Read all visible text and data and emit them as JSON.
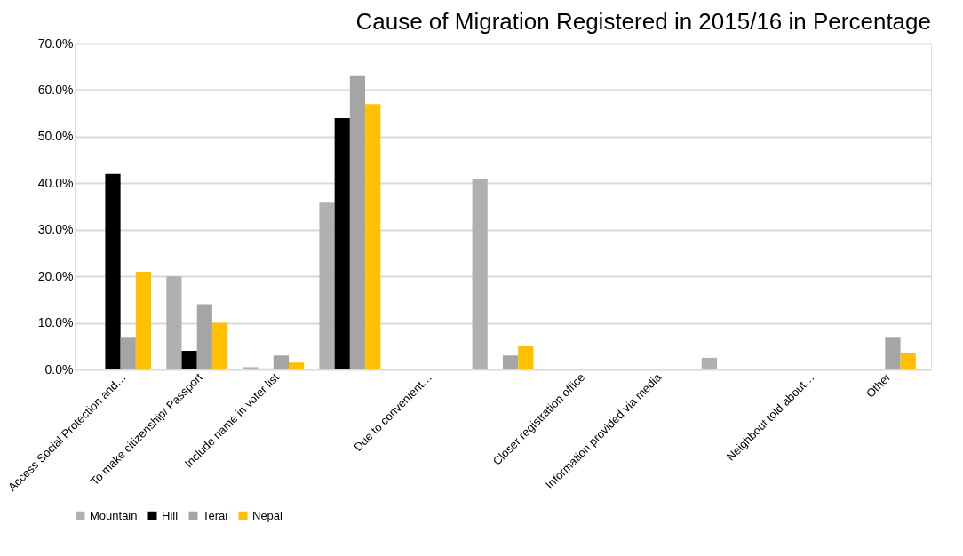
{
  "chart_data": {
    "type": "bar",
    "title": "Cause of Migration Registered in 2015/16 in Percentage",
    "categories": [
      "Access Social Protection and…",
      "To make citizenship/ Passport",
      "Include name in voter list",
      null,
      "Due to convenient…",
      null,
      "Closer registration office",
      "Information provided via media",
      null,
      "Neighbout told about…",
      "Other"
    ],
    "series": [
      {
        "name": "Mountain",
        "color": "#b0b0b0",
        "values": [
          0,
          20,
          0.5,
          36,
          0,
          41,
          0,
          0,
          2.5,
          0,
          0
        ]
      },
      {
        "name": "Hill",
        "color": "#000000",
        "values": [
          42,
          4,
          0.2,
          54,
          0,
          0,
          0,
          0,
          0,
          0,
          0
        ]
      },
      {
        "name": "Terai",
        "color": "#a5a5a5",
        "values": [
          7,
          14,
          3,
          63,
          0,
          3,
          0,
          0,
          0,
          0,
          7
        ]
      },
      {
        "name": "Nepal",
        "color": "#ffc000",
        "values": [
          21,
          10,
          1.5,
          57,
          0,
          5,
          0,
          0,
          0,
          0,
          3.5
        ]
      }
    ],
    "ylim": [
      0,
      70
    ],
    "yticks": [
      {
        "value": 0,
        "label": "0.0%"
      },
      {
        "value": 10,
        "label": "10.0%"
      },
      {
        "value": 20,
        "label": "20.0%"
      },
      {
        "value": 30,
        "label": "30.0%"
      },
      {
        "value": 40,
        "label": "40.0%"
      },
      {
        "value": 50,
        "label": "50.0%"
      },
      {
        "value": 60,
        "label": "60.0%"
      },
      {
        "value": 70,
        "label": "70.0%"
      }
    ],
    "grid": "y",
    "legend": "bottom"
  }
}
